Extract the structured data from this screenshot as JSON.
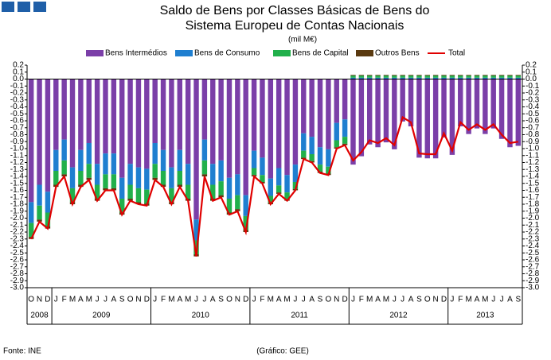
{
  "chart_data": {
    "type": "stacked_bar_line",
    "title": [
      "Saldo de Bens por Classes Básicas de Bens do",
      "Sistema Europeu de Contas Nacionais"
    ],
    "subtitle": "(mil M€)",
    "categories": [
      "O",
      "N",
      "D",
      "J",
      "F",
      "M",
      "A",
      "M",
      "J",
      "J",
      "A",
      "S",
      "O",
      "N",
      "D",
      "J",
      "F",
      "M",
      "A",
      "M",
      "J",
      "J",
      "A",
      "S",
      "O",
      "N",
      "D",
      "J",
      "F",
      "M",
      "A",
      "M",
      "J",
      "J",
      "A",
      "S",
      "O",
      "N",
      "D",
      "J",
      "F",
      "M",
      "A",
      "M",
      "J",
      "J",
      "A",
      "S",
      "O",
      "N",
      "D",
      "J",
      "F",
      "M",
      "A",
      "M",
      "J",
      "J",
      "A",
      "S"
    ],
    "year_groups": [
      {
        "label": "2008",
        "count": 3
      },
      {
        "label": "2009",
        "count": 12
      },
      {
        "label": "2010",
        "count": 12
      },
      {
        "label": "2011",
        "count": 12
      },
      {
        "label": "2012",
        "count": 12
      },
      {
        "label": "2013",
        "count": 9
      }
    ],
    "series": [
      {
        "name": "Bens Intermédios",
        "color": "#7b3fa8",
        "values": [
          -1.77,
          -1.52,
          -1.62,
          -1.02,
          -0.87,
          -1.27,
          -1.02,
          -0.92,
          -1.22,
          -1.07,
          -1.07,
          -1.42,
          -1.22,
          -1.27,
          -1.29,
          -0.92,
          -1.02,
          -1.27,
          -1.02,
          -1.22,
          -2.02,
          -0.87,
          -1.22,
          -1.17,
          -1.42,
          -1.37,
          -1.67,
          -1.03,
          -1.13,
          -1.43,
          -1.28,
          -1.38,
          -1.23,
          -0.78,
          -0.83,
          -0.98,
          -1.01,
          -0.63,
          -0.58,
          -1.23,
          -1.11,
          -0.94,
          -0.98,
          -0.91,
          -1.01,
          -0.61,
          -0.68,
          -1.13,
          -1.14,
          -1.14,
          -0.84,
          -1.09,
          -0.68,
          -0.79,
          -0.71,
          -0.79,
          -0.71,
          -0.86,
          -0.98,
          -0.96
        ]
      },
      {
        "name": "Bens de Consumo",
        "color": "#1f7fd0",
        "values": [
          -0.3,
          -0.3,
          -0.3,
          -0.3,
          -0.3,
          -0.3,
          -0.3,
          -0.3,
          -0.3,
          -0.3,
          -0.3,
          -0.3,
          -0.3,
          -0.3,
          -0.3,
          -0.3,
          -0.3,
          -0.3,
          -0.3,
          -0.3,
          -0.3,
          -0.3,
          -0.3,
          -0.3,
          -0.3,
          -0.3,
          -0.3,
          -0.25,
          -0.25,
          -0.25,
          -0.25,
          -0.25,
          -0.25,
          -0.25,
          -0.25,
          -0.25,
          -0.25,
          -0.25,
          -0.25,
          0.02,
          0.02,
          0.02,
          0.02,
          0.02,
          0.02,
          0.02,
          0.02,
          0.02,
          0.02,
          0.02,
          0.02,
          0.02,
          0.02,
          0.02,
          0.02,
          0.02,
          0.02,
          0.02,
          0.02,
          0.02
        ]
      },
      {
        "name": "Bens de Capital",
        "color": "#21b04b",
        "values": [
          -0.2,
          -0.2,
          -0.2,
          -0.2,
          -0.2,
          -0.2,
          -0.2,
          -0.2,
          -0.2,
          -0.2,
          -0.2,
          -0.2,
          -0.2,
          -0.2,
          -0.2,
          -0.2,
          -0.2,
          -0.2,
          -0.2,
          -0.2,
          -0.2,
          -0.2,
          -0.2,
          -0.2,
          -0.2,
          -0.2,
          -0.2,
          -0.1,
          -0.1,
          -0.1,
          -0.1,
          -0.1,
          -0.1,
          -0.1,
          -0.1,
          -0.1,
          -0.1,
          -0.1,
          -0.1,
          0.03,
          0.03,
          0.03,
          0.03,
          0.03,
          0.03,
          0.03,
          0.03,
          0.03,
          0.03,
          0.03,
          0.03,
          0.03,
          0.03,
          0.03,
          0.03,
          0.03,
          0.03,
          0.03,
          0.03,
          0.03
        ]
      },
      {
        "name": "Outros Bens",
        "color": "#5a3a10",
        "values": [
          -0.03,
          -0.03,
          -0.03,
          -0.03,
          -0.03,
          -0.03,
          -0.03,
          -0.03,
          -0.03,
          -0.03,
          -0.03,
          -0.03,
          -0.03,
          -0.03,
          -0.03,
          -0.03,
          -0.03,
          -0.03,
          -0.03,
          -0.03,
          -0.03,
          -0.03,
          -0.03,
          -0.03,
          -0.03,
          -0.03,
          -0.03,
          -0.02,
          -0.02,
          -0.02,
          -0.02,
          -0.02,
          -0.02,
          -0.02,
          -0.02,
          -0.02,
          -0.02,
          -0.02,
          -0.02,
          0.01,
          0.01,
          0.01,
          0.01,
          0.01,
          0.01,
          0.01,
          0.01,
          0.01,
          0.01,
          0.01,
          0.01,
          0.01,
          0.01,
          0.01,
          0.01,
          0.01,
          0.01,
          0.01,
          0.01,
          0.01
        ]
      },
      {
        "name": "Total",
        "color": "#e00000",
        "kind": "line",
        "values": [
          -2.3,
          -2.05,
          -2.15,
          -1.55,
          -1.4,
          -1.8,
          -1.55,
          -1.45,
          -1.75,
          -1.6,
          -1.6,
          -1.95,
          -1.75,
          -1.8,
          -1.82,
          -1.45,
          -1.55,
          -1.8,
          -1.55,
          -1.75,
          -2.55,
          -1.4,
          -1.75,
          -1.7,
          -1.95,
          -1.9,
          -2.2,
          -1.4,
          -1.5,
          -1.8,
          -1.65,
          -1.75,
          -1.6,
          -1.15,
          -1.2,
          -1.35,
          -1.38,
          -1.0,
          -0.95,
          -1.17,
          -1.05,
          -0.88,
          -0.92,
          -0.85,
          -0.95,
          -0.55,
          -0.62,
          -1.07,
          -1.08,
          -1.08,
          -0.78,
          -1.03,
          -0.62,
          -0.73,
          -0.65,
          -0.73,
          -0.65,
          -0.8,
          -0.92,
          -0.9
        ]
      }
    ],
    "ylim": [
      -3.0,
      0.2
    ],
    "yticks": [
      0.2,
      0.1,
      {
        "value": 0,
        "label": "0.0"
      },
      -0.1,
      -0.2,
      -0.3,
      -0.4,
      -0.5,
      -0.6,
      -0.7,
      -0.8,
      -0.9,
      {
        "value": -1,
        "label": "-1.0"
      },
      -1.1,
      -1.2,
      -1.3,
      -1.4,
      -1.5,
      -1.6,
      -1.7,
      -1.8,
      -1.9,
      {
        "value": -2,
        "label": "-2.0"
      },
      -2.1,
      -2.2,
      -2.3,
      -2.4,
      -2.5,
      -2.6,
      -2.7,
      -2.8,
      -2.9,
      {
        "value": -3,
        "label": "-3.0"
      }
    ],
    "y2lim": [
      -3.0,
      0.2
    ],
    "y2ticks": [
      0.2,
      0.1,
      {
        "value": 0,
        "label": "0.0"
      },
      -0.1,
      -0.2,
      -0.3,
      -0.4,
      -0.5,
      -0.6,
      -0.7,
      -0.8,
      -0.9,
      {
        "value": -1,
        "label": "-1.0"
      },
      -1.1,
      -1.2,
      -1.3,
      -1.4,
      -1.5,
      -1.6,
      -1.7,
      -1.8,
      -1.9,
      {
        "value": -2,
        "label": "-2.0"
      },
      -2.1,
      -2.2,
      -2.3,
      -2.4,
      -2.5,
      -2.6,
      -2.7,
      -2.8,
      -2.9,
      {
        "value": -3,
        "label": "-3.0"
      }
    ],
    "grid": false,
    "legend": "top",
    "source": "Fonte: INE",
    "credit": "(Gráfico: GEE)"
  }
}
